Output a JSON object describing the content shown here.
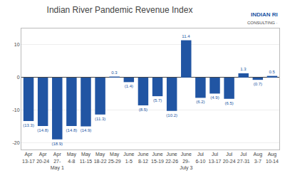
{
  "chart_data": {
    "type": "bar",
    "title": "Indian River Pandemic Revenue Index",
    "categories": [
      "Apr\n13-17",
      "Apr\n20-24",
      "Apr\n27-\nMay 1",
      "May\n4-8",
      "May\n11-15",
      "May\n18-22",
      "May\n25-29",
      "June\n1-5",
      "June\n8-12",
      "June\n15-19",
      "June\n22-26",
      "June\n29-\nJuly 3",
      "Jul\n6-10",
      "Jul\n13-17",
      "Jul\n20-24",
      "Jul\n27-31",
      "Aug\n3-7",
      "Aug\n10-14"
    ],
    "values": [
      -13.3,
      -14.8,
      -18.9,
      -14.8,
      -14.9,
      -11.3,
      0.3,
      -1.4,
      -8.5,
      -5.7,
      -10.2,
      11.4,
      -6.2,
      -4.9,
      -6.5,
      1.3,
      -0.7,
      0.5
    ],
    "value_labels": [
      "(13.3)",
      "(14.8)",
      "(18.9)",
      "(14.8)",
      "(14.9)",
      "(11.3)",
      "0.3",
      "(1.4)",
      "(8.5)",
      "(5.7)",
      "(10.2)",
      "11.4",
      "(6.2)",
      "(4.9)",
      "(6.5)",
      "1.3",
      "(0.7)",
      "0.5"
    ],
    "data_labels": true,
    "color": "#2155a3",
    "ylim": [
      -22,
      15
    ],
    "yticks": [
      -20,
      -10,
      0,
      10
    ],
    "grid": true,
    "annotations": [
      "INDIAN RI",
      "CONSULTING ·"
    ]
  }
}
